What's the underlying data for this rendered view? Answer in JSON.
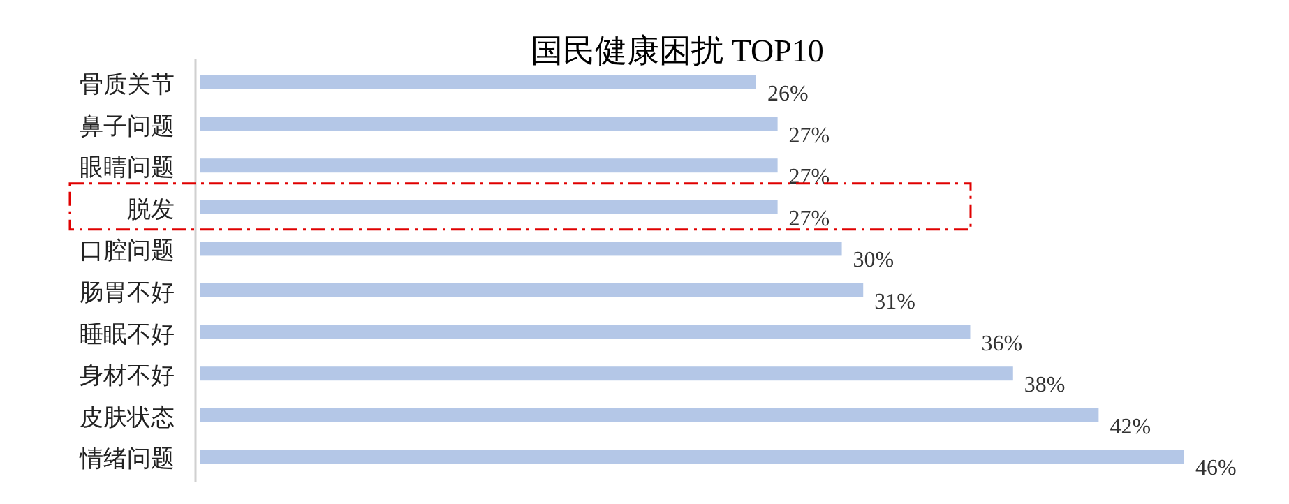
{
  "chart_data": {
    "type": "bar",
    "orientation": "horizontal",
    "title": "国民健康困扰 TOP10",
    "categories": [
      "骨质关节",
      "鼻子问题",
      "眼睛问题",
      "脱发",
      "口腔问题",
      "肠胃不好",
      "睡眠不好",
      "身材不好",
      "皮肤状态",
      "情绪问题"
    ],
    "values": [
      26,
      27,
      27,
      27,
      30,
      31,
      36,
      38,
      42,
      46
    ],
    "value_labels": [
      "26%",
      "27%",
      "27%",
      "27%",
      "30%",
      "31%",
      "36%",
      "38%",
      "42%",
      "46%"
    ],
    "color": "#b4c7e7"
  }
}
